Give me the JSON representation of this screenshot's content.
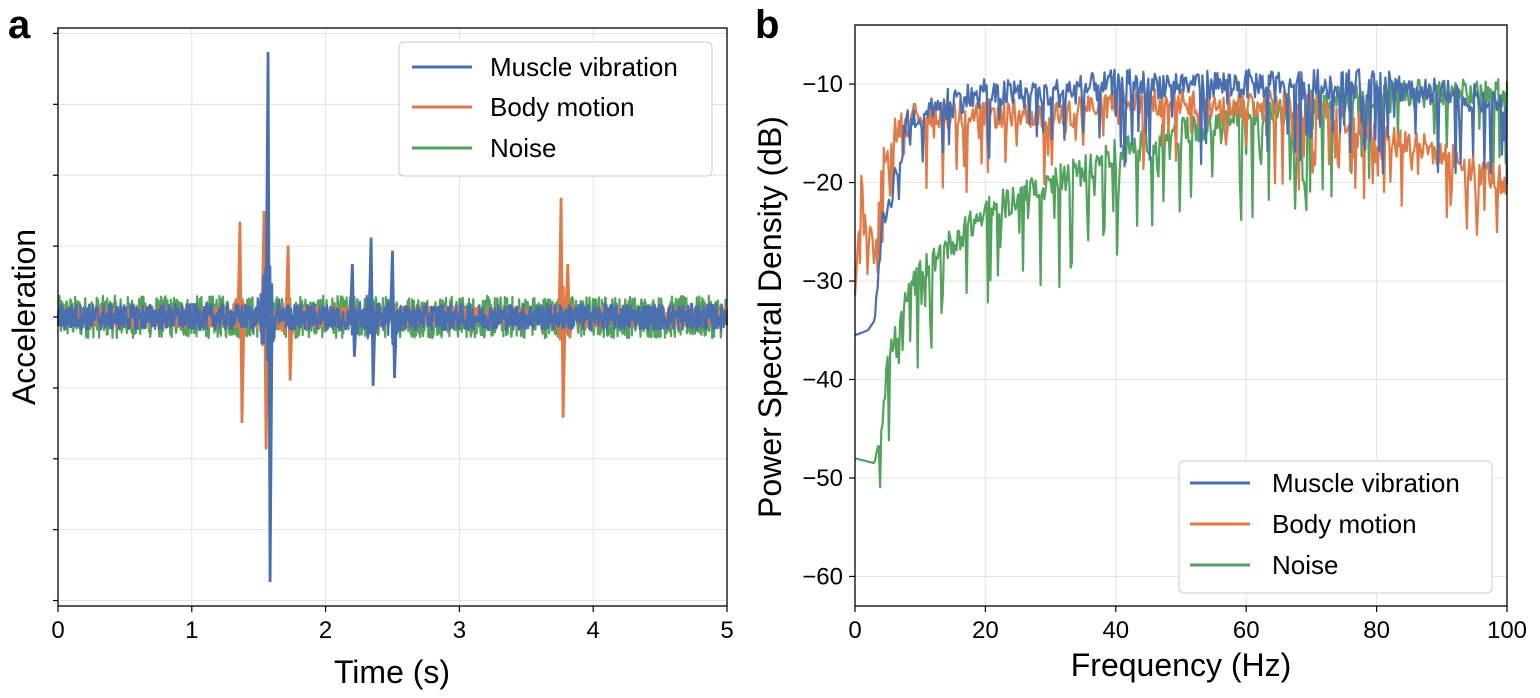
{
  "panels": {
    "a": {
      "label": "a"
    },
    "b": {
      "label": "b"
    }
  },
  "chart_data": [
    {
      "type": "line",
      "panel": "a",
      "title": "",
      "xlabel": "Time (s)",
      "ylabel": "Acceleration",
      "xlim": [
        0,
        5
      ],
      "xticks": [
        "0",
        "1",
        "2",
        "3",
        "4",
        "5"
      ],
      "yticks_labeled": false,
      "grid": true,
      "legend_position": "top-right",
      "colors": {
        "Muscle vibration": "#4a6fb0",
        "Body motion": "#e07b47",
        "Noise": "#53a35e"
      },
      "series": [
        {
          "name": "Muscle vibration",
          "baseline": 0,
          "noise_amplitude": 0.05,
          "spikes": [
            {
              "t": 1.57,
              "peak": 1.0,
              "trough": -1.0
            },
            {
              "t": 2.2,
              "peak": 0.2,
              "trough": -0.15
            },
            {
              "t": 2.34,
              "peak": 0.3,
              "trough": -0.26
            },
            {
              "t": 2.5,
              "peak": 0.25,
              "trough": -0.23
            }
          ]
        },
        {
          "name": "Body motion",
          "baseline": 0,
          "noise_amplitude": 0.04,
          "spikes": [
            {
              "t": 1.36,
              "peak": 0.36,
              "trough": -0.4
            },
            {
              "t": 1.54,
              "peak": 0.4,
              "trough": -0.5
            },
            {
              "t": 1.72,
              "peak": 0.27,
              "trough": -0.24
            },
            {
              "t": 3.76,
              "peak": 0.45,
              "trough": -0.38
            },
            {
              "t": 3.81,
              "peak": 0.2,
              "trough": -0.08
            }
          ]
        },
        {
          "name": "Noise",
          "baseline": 0,
          "noise_amplitude": 0.08,
          "spikes": []
        }
      ]
    },
    {
      "type": "line",
      "panel": "b",
      "title": "",
      "xlabel": "Frequency (Hz)",
      "ylabel": "Power Spectral Density (dB)",
      "xlim": [
        0,
        100
      ],
      "ylim": [
        -63,
        -4
      ],
      "xticks": [
        "0",
        "20",
        "40",
        "60",
        "80",
        "100"
      ],
      "yticks": [
        "-60",
        "-50",
        "-40",
        "-30",
        "-20",
        "-10"
      ],
      "grid": true,
      "legend_position": "bottom-right",
      "series": [
        {
          "name": "Muscle vibration",
          "color": "#4a6fb0",
          "envelope": [
            [
              0,
              -35.5
            ],
            [
              2,
              -35
            ],
            [
              3,
              -34
            ],
            [
              4,
              -25
            ],
            [
              6,
              -20
            ],
            [
              8,
              -14
            ],
            [
              12,
              -12
            ],
            [
              20,
              -11
            ],
            [
              30,
              -11
            ],
            [
              40,
              -10
            ],
            [
              50,
              -10
            ],
            [
              60,
              -10
            ],
            [
              70,
              -10
            ],
            [
              80,
              -10
            ],
            [
              90,
              -11
            ],
            [
              100,
              -12
            ]
          ]
        },
        {
          "name": "Body motion",
          "color": "#e07b47",
          "envelope": [
            [
              0,
              -30
            ],
            [
              1,
              -20
            ],
            [
              2,
              -25
            ],
            [
              3,
              -27
            ],
            [
              4,
              -20
            ],
            [
              5,
              -15
            ],
            [
              10,
              -13
            ],
            [
              20,
              -13
            ],
            [
              30,
              -13
            ],
            [
              40,
              -12
            ],
            [
              50,
              -12
            ],
            [
              60,
              -12
            ],
            [
              70,
              -12
            ],
            [
              80,
              -15
            ],
            [
              90,
              -17
            ],
            [
              100,
              -20
            ]
          ]
        },
        {
          "name": "Noise",
          "color": "#53a35e",
          "envelope": [
            [
              0,
              -48
            ],
            [
              3,
              -48.5
            ],
            [
              4,
              -45
            ],
            [
              5,
              -38
            ],
            [
              8,
              -32
            ],
            [
              10,
              -29
            ],
            [
              15,
              -26
            ],
            [
              20,
              -23
            ],
            [
              30,
              -20
            ],
            [
              40,
              -17
            ],
            [
              50,
              -15
            ],
            [
              60,
              -13
            ],
            [
              70,
              -12
            ],
            [
              80,
              -11
            ],
            [
              90,
              -11
            ],
            [
              100,
              -11
            ]
          ]
        }
      ]
    }
  ]
}
